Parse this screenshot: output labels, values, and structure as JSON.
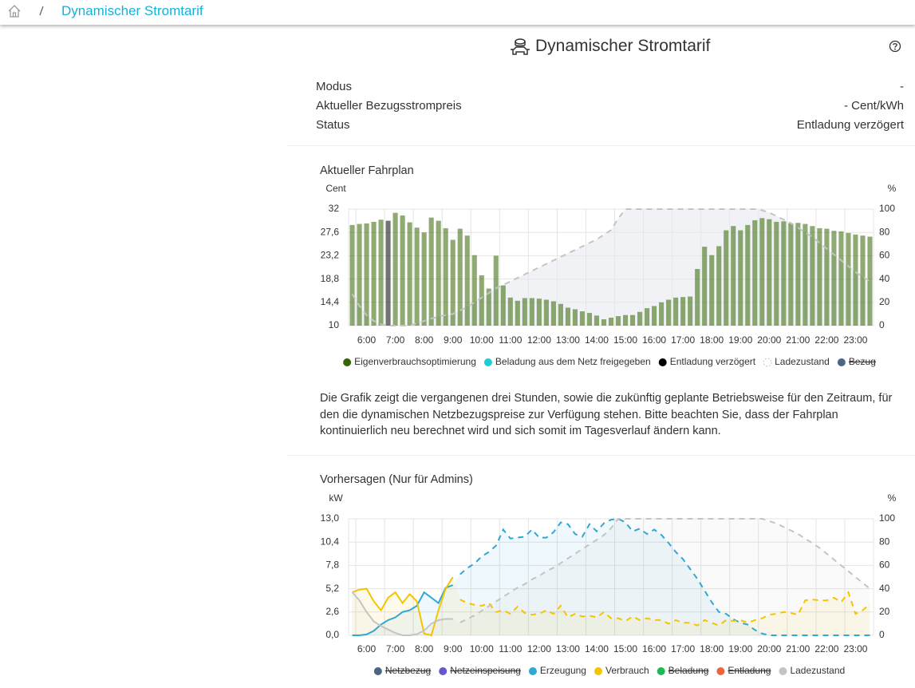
{
  "breadcrumb": "Dynamischer Stromtarif",
  "header": {
    "title": "Dynamischer Stromtarif"
  },
  "info": [
    {
      "label": "Modus",
      "value": "-"
    },
    {
      "label": "Aktueller Bezugsstrompreis",
      "value": "- Cent/kWh"
    },
    {
      "label": "Status",
      "value": "Entladung verzögert"
    }
  ],
  "description": "Die Grafik zeigt die vergangenen drei Stunden, sowie die zukünftig geplante Betriebsweise für den Zeitraum, für den die dynamischen Netzbezugspreise zur Verfügung stehen. Bitte beachten Sie, dass der Fahrplan kontinuierlich neu berechnet wird und sich somit im Tagesverlauf ändern kann.",
  "chart_data": [
    {
      "type": "bar",
      "title": "Aktueller Fahrplan",
      "y_label": "Cent",
      "y2_label": "%",
      "categories": [
        null,
        null,
        "6:00",
        null,
        null,
        null,
        "7:00",
        null,
        null,
        null,
        "8:00",
        null,
        null,
        null,
        "9:00",
        null,
        null,
        null,
        "10:00",
        null,
        null,
        null,
        "11:00",
        null,
        null,
        null,
        "12:00",
        null,
        null,
        null,
        "13:00",
        null,
        null,
        null,
        "14:00",
        null,
        null,
        null,
        "15:00",
        null,
        null,
        null,
        "16:00",
        null,
        null,
        null,
        "17:00",
        null,
        null,
        null,
        "18:00",
        null,
        null,
        null,
        "19:00",
        null,
        null,
        null,
        "20:00",
        null,
        null,
        null,
        "21:00",
        null,
        null,
        null,
        "22:00",
        null,
        null,
        null,
        "23:00",
        null,
        null
      ],
      "ylim": [
        10,
        32
      ],
      "yticks": [
        10,
        {
          "value": 14.4,
          "label": "14,4"
        },
        {
          "value": 18.8,
          "label": "18,8"
        },
        {
          "value": 23.2,
          "label": "23,2"
        },
        {
          "value": 27.6,
          "label": "27,6"
        },
        32
      ],
      "y2lim": [
        0,
        100
      ],
      "y2ticks": [
        0,
        20,
        40,
        60,
        80,
        100
      ],
      "grid": true,
      "series": [
        {
          "name": "Eigenverbrauchsoptimierung",
          "color": "#336600",
          "type": "bar",
          "values": [
            29.0,
            29.2,
            29.3,
            29.6,
            30.0,
            null,
            31.3,
            30.8,
            29.5,
            28.5,
            27.6,
            30.4,
            29.8,
            28.4,
            26.2,
            28.3,
            27.0,
            23.3,
            19.5,
            17.0,
            23.2,
            17.6,
            15.3,
            14.7,
            15.2,
            15.2,
            15.1,
            14.9,
            14.6,
            14.1,
            13.4,
            13.1,
            12.7,
            12.4,
            11.9,
            11.2,
            11.5,
            11.8,
            12.0,
            12.0,
            12.6,
            13.3,
            13.7,
            14.4,
            14.9,
            15.3,
            15.4,
            15.5,
            20.7,
            24.9,
            23.3,
            25.0,
            28.0,
            28.8,
            28.0,
            29.0,
            29.9,
            30.3,
            30.1,
            29.6,
            29.7,
            29.3,
            29.4,
            29.2,
            28.8,
            28.4,
            28.3,
            27.9,
            27.8,
            27.5,
            27.2,
            27.0,
            26.8
          ]
        },
        {
          "name": "Beladung aus dem Netz freigegeben",
          "color": "#1ccfd6",
          "type": "bar"
        },
        {
          "name": "Entladung verzögert",
          "color": "#000000",
          "type": "bar",
          "values": [
            null,
            null,
            null,
            null,
            null,
            29.8,
            null,
            null,
            null,
            null,
            null,
            null,
            null,
            null,
            null,
            null,
            null,
            null,
            null,
            null,
            null,
            null,
            null,
            null,
            null,
            null,
            null,
            null,
            null,
            null,
            null,
            null,
            null,
            null,
            null,
            null,
            null,
            null,
            null,
            null,
            null,
            null,
            null,
            null,
            null,
            null,
            null,
            null,
            null,
            null,
            null,
            null,
            null,
            null,
            null,
            null,
            null,
            null,
            null,
            null,
            null,
            null,
            null,
            null,
            null,
            null,
            null,
            null,
            null,
            null,
            null,
            null,
            null
          ]
        },
        {
          "name": "Ladezustand",
          "color": "#c4c4c4",
          "type": "line",
          "axis": "y2",
          "values": [
            27,
            17,
            9,
            4,
            1,
            0,
            0,
            0,
            0,
            2,
            4,
            6,
            8,
            9,
            10,
            13,
            16,
            20,
            24,
            28,
            32,
            35,
            38,
            41,
            44,
            47,
            50,
            53,
            56,
            59,
            62,
            65,
            68,
            71,
            74,
            78,
            82,
            92,
            100,
            100,
            100,
            100,
            100,
            100,
            100,
            100,
            100,
            100,
            100,
            100,
            100,
            100,
            100,
            100,
            100,
            100,
            100,
            99,
            97,
            94,
            91,
            88,
            84,
            80,
            76,
            71,
            66,
            61,
            56,
            51,
            46,
            42,
            38
          ]
        },
        {
          "name": "Bezug",
          "color": "#4b6584",
          "type": "bar",
          "hidden": true
        }
      ]
    },
    {
      "type": "line",
      "title": "Vorhersagen (Nur für Admins)",
      "y_label": "kW",
      "y2_label": "%",
      "categories": [
        null,
        null,
        "6:00",
        null,
        null,
        null,
        "7:00",
        null,
        null,
        null,
        "8:00",
        null,
        null,
        null,
        "9:00",
        null,
        null,
        null,
        "10:00",
        null,
        null,
        null,
        "11:00",
        null,
        null,
        null,
        "12:00",
        null,
        null,
        null,
        "13:00",
        null,
        null,
        null,
        "14:00",
        null,
        null,
        null,
        "15:00",
        null,
        null,
        null,
        "16:00",
        null,
        null,
        null,
        "17:00",
        null,
        null,
        null,
        "18:00",
        null,
        null,
        null,
        "19:00",
        null,
        null,
        null,
        "20:00",
        null,
        null,
        null,
        "21:00",
        null,
        null,
        null,
        "22:00",
        null,
        null,
        null,
        "23:00",
        null,
        null
      ],
      "ylim": [
        0,
        13
      ],
      "yticks": [
        {
          "value": 0,
          "label": "0,0"
        },
        {
          "value": 2.6,
          "label": "2,6"
        },
        {
          "value": 5.2,
          "label": "5,2"
        },
        {
          "value": 7.8,
          "label": "7,8"
        },
        {
          "value": 10.4,
          "label": "10,4"
        },
        {
          "value": 13,
          "label": "13,0"
        }
      ],
      "y2lim": [
        0,
        100
      ],
      "y2ticks": [
        0,
        20,
        40,
        60,
        80,
        100
      ],
      "grid": true,
      "series": [
        {
          "name": "Netzbezug",
          "color": "#4b6584",
          "hidden": true
        },
        {
          "name": "Netzeinspeisung",
          "color": "#6457d0",
          "hidden": true
        },
        {
          "name": "Erzeugung",
          "color": "#2fa8d3",
          "values": [
            0,
            0,
            0.1,
            0.5,
            1.2,
            1.7,
            2.0,
            2.6,
            2.8,
            3.3,
            4.8,
            4.2,
            3.6,
            5.3,
            5.6,
            6.8,
            7.5,
            8.0,
            8.8,
            9.3,
            10.0,
            11.8,
            10.8,
            10.9,
            11.0,
            11.8,
            10.9,
            10.9,
            11.5,
            12.6,
            12.4,
            11.3,
            11.0,
            12.4,
            11.6,
            12.5,
            12.9,
            13.0,
            12.6,
            11.6,
            11.9,
            11.3,
            11.8,
            11.2,
            10.3,
            9.3,
            8.5,
            7.4,
            6.3,
            5.0,
            3.7,
            2.6,
            2.4,
            1.8,
            1.4,
            1.2,
            0.6,
            0.2,
            0,
            0,
            0,
            0,
            0,
            0,
            0,
            0,
            0,
            0,
            0,
            0,
            0,
            0,
            0
          ]
        },
        {
          "name": "Verbrauch",
          "color": "#f5c400",
          "values": [
            4.8,
            5.1,
            5.2,
            3.8,
            2.8,
            4.2,
            4.8,
            3.6,
            4.6,
            3.8,
            0.2,
            0,
            2.8,
            5.2,
            6.5,
            4.0,
            3.6,
            3.4,
            3.3,
            3.6,
            2.6,
            2.8,
            2.4,
            3.2,
            2.5,
            2.3,
            2.4,
            2.8,
            2.4,
            3.3,
            2.0,
            2.4,
            2.1,
            2.2,
            2.0,
            2.6,
            1.9,
            1.9,
            1.6,
            2.1,
            1.7,
            1.9,
            1.7,
            1.7,
            1.3,
            1.7,
            1.4,
            1.4,
            1.1,
            1.7,
            1.4,
            1.1,
            1.7,
            1.6,
            1.7,
            1.4,
            1.7,
            1.9,
            2.3,
            2.4,
            2.6,
            2.5,
            2.3,
            3.9,
            4.0,
            3.9,
            3.9,
            4.2,
            3.7,
            4.8,
            2.4,
            2.8,
            3.5
          ]
        },
        {
          "name": "Beladung",
          "color": "#1db954",
          "hidden": true
        },
        {
          "name": "Entladung",
          "color": "#f0643c",
          "hidden": true
        },
        {
          "name": "Ladezustand",
          "color": "#c4c4c4",
          "axis": "y2",
          "values": [
            37,
            30,
            20,
            12,
            8,
            5,
            2,
            0,
            0,
            1,
            4,
            10,
            13,
            14,
            14,
            11,
            14,
            17,
            21,
            25,
            29,
            33,
            37,
            41,
            44,
            48,
            51,
            55,
            58,
            62,
            66,
            70,
            74,
            78,
            82,
            86,
            92,
            100,
            100,
            100,
            100,
            100,
            100,
            100,
            100,
            100,
            100,
            100,
            100,
            100,
            100,
            100,
            100,
            100,
            100,
            100,
            100,
            100,
            98,
            96,
            93,
            90,
            87,
            83,
            79,
            75,
            70,
            65,
            60,
            55,
            50,
            45,
            40
          ]
        }
      ]
    }
  ]
}
